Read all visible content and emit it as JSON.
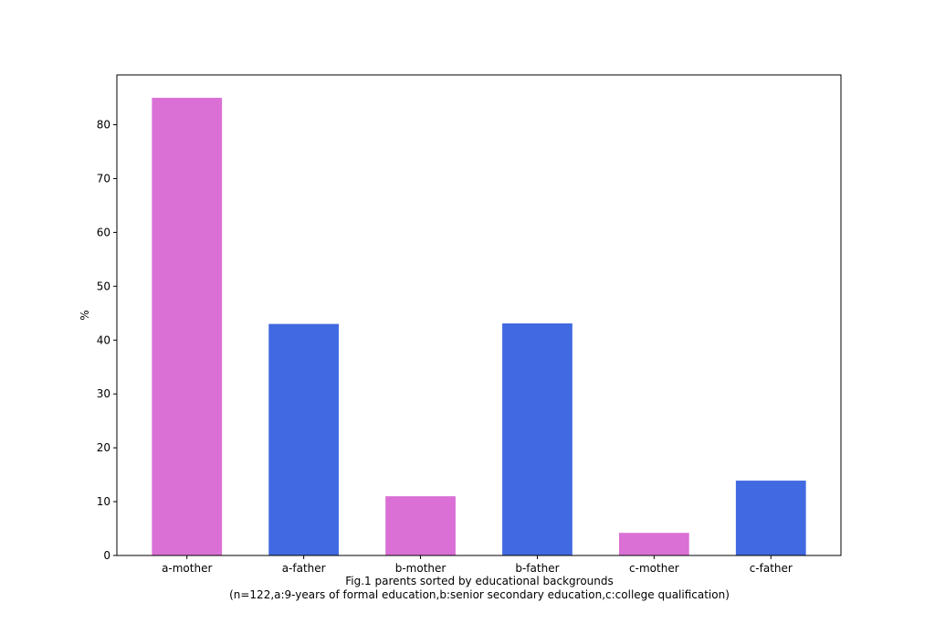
{
  "chart_data": {
    "type": "bar",
    "categories": [
      "a-mother",
      "a-father",
      "b-mother",
      "b-father",
      "c-mother",
      "c-father"
    ],
    "values": [
      85,
      43,
      11,
      43.1,
      4.2,
      13.9
    ],
    "bar_colors": [
      "#da70d6",
      "#4169e1",
      "#da70d6",
      "#4169e1",
      "#da70d6",
      "#4169e1"
    ],
    "ylabel": "%",
    "xlabel_line1": "Fig.1 parents sorted by educational backgrounds",
    "xlabel_line2": "(n=122,a:9-years of formal education,b:senior secondary education,c:college qualification)",
    "ylim": [
      0,
      89.25
    ],
    "yticks": [
      0,
      10,
      20,
      30,
      40,
      50,
      60,
      70,
      80
    ],
    "grid": false
  }
}
